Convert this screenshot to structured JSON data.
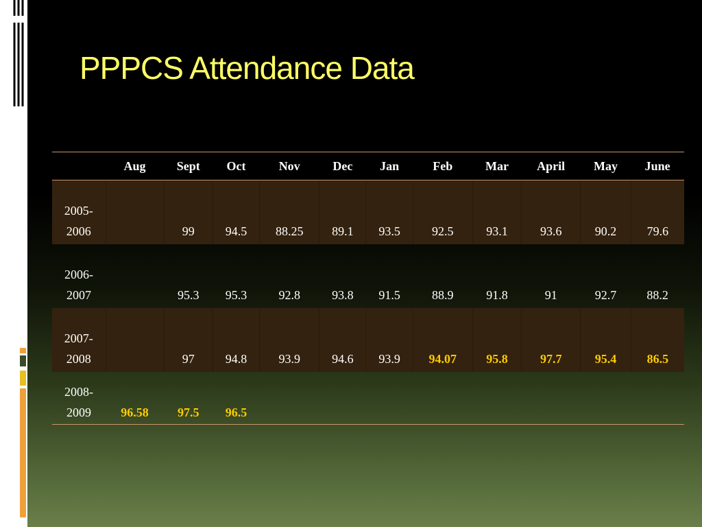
{
  "slide": {
    "title": "PPPCS Attendance Data"
  },
  "table": {
    "header": [
      "",
      "Aug",
      "Sept",
      "Oct",
      "Nov",
      "Dec",
      "Jan",
      "Feb",
      "Mar",
      "April",
      "May",
      "June"
    ],
    "rows": [
      {
        "year": "2005-\n2006",
        "cells": [
          {
            "v": "",
            "hl": false
          },
          {
            "v": "99",
            "hl": false
          },
          {
            "v": "94.5",
            "hl": false
          },
          {
            "v": "88.25",
            "hl": false
          },
          {
            "v": "89.1",
            "hl": false
          },
          {
            "v": "93.5",
            "hl": false
          },
          {
            "v": "92.5",
            "hl": false
          },
          {
            "v": "93.1",
            "hl": false
          },
          {
            "v": "93.6",
            "hl": false
          },
          {
            "v": "90.2",
            "hl": false
          },
          {
            "v": "79.6",
            "hl": false
          }
        ]
      },
      {
        "year": "2006-\n2007",
        "cells": [
          {
            "v": "",
            "hl": false
          },
          {
            "v": "95.3",
            "hl": false
          },
          {
            "v": "95.3",
            "hl": false
          },
          {
            "v": "92.8",
            "hl": false
          },
          {
            "v": "93.8",
            "hl": false
          },
          {
            "v": "91.5",
            "hl": false
          },
          {
            "v": "88.9",
            "hl": false
          },
          {
            "v": "91.8",
            "hl": false
          },
          {
            "v": "91",
            "hl": false
          },
          {
            "v": "92.7",
            "hl": false
          },
          {
            "v": "88.2",
            "hl": false
          }
        ]
      },
      {
        "year": "2007-\n2008",
        "cells": [
          {
            "v": "",
            "hl": false
          },
          {
            "v": "97",
            "hl": false
          },
          {
            "v": "94.8",
            "hl": false
          },
          {
            "v": "93.9",
            "hl": false
          },
          {
            "v": "94.6",
            "hl": false
          },
          {
            "v": "93.9",
            "hl": false
          },
          {
            "v": "94.07",
            "hl": true
          },
          {
            "v": "95.8",
            "hl": true
          },
          {
            "v": "97.7",
            "hl": true
          },
          {
            "v": "95.4",
            "hl": true
          },
          {
            "v": "86.5",
            "hl": true
          }
        ]
      },
      {
        "year": "2008-\n2009",
        "cells": [
          {
            "v": "96.58",
            "hl": true
          },
          {
            "v": "97.5",
            "hl": true
          },
          {
            "v": "96.5",
            "hl": true
          },
          {
            "v": "",
            "hl": false
          },
          {
            "v": "",
            "hl": false
          },
          {
            "v": "",
            "hl": false
          },
          {
            "v": "",
            "hl": false
          },
          {
            "v": "",
            "hl": false
          },
          {
            "v": "",
            "hl": false
          },
          {
            "v": "",
            "hl": false
          },
          {
            "v": "",
            "hl": false
          }
        ]
      }
    ]
  },
  "colors": {
    "title": "#ffff66",
    "highlight": "#ffcc00",
    "band": "#33220f",
    "rule": "#c8956a"
  }
}
